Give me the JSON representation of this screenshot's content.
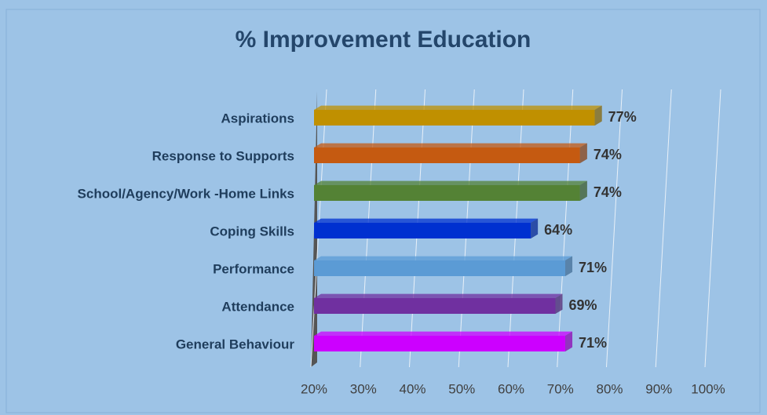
{
  "chart_data": {
    "type": "bar",
    "orientation": "horizontal",
    "title": "% Improvement Education",
    "categories": [
      "Aspirations",
      "Response to Supports",
      "School/Agency/Work -Home Links",
      "Coping Skills",
      "Performance",
      "Attendance",
      "General Behaviour"
    ],
    "series": [
      {
        "values": [
          77,
          74,
          74,
          64,
          71,
          69,
          71
        ],
        "value_labels": [
          "77%",
          "74%",
          "74%",
          "64%",
          "71%",
          "69%",
          "71%"
        ],
        "colors": [
          "#c09000",
          "#c55a11",
          "#548235",
          "#0030d0",
          "#5b9bd5",
          "#7030a0",
          "#cc00ff"
        ]
      }
    ],
    "xlim": [
      20,
      100
    ],
    "xticks": [
      {
        "value": 20,
        "label": "20%"
      },
      {
        "value": 30,
        "label": "30%"
      },
      {
        "value": 40,
        "label": "40%"
      },
      {
        "value": 50,
        "label": "50%"
      },
      {
        "value": 60,
        "label": "60%"
      },
      {
        "value": 70,
        "label": "70%"
      },
      {
        "value": 80,
        "label": "80%"
      },
      {
        "value": 90,
        "label": "90%"
      },
      {
        "value": 100,
        "label": "100%"
      }
    ],
    "grid": true
  }
}
